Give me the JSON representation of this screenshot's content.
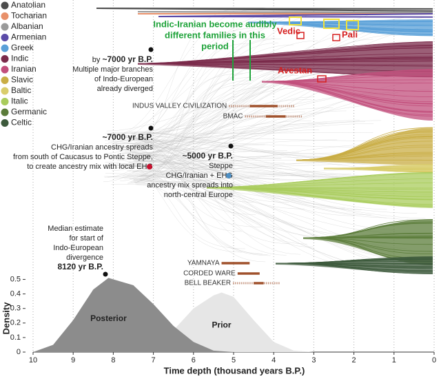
{
  "legend": [
    {
      "name": "Anatolian",
      "color": "#4d4d4d"
    },
    {
      "name": "Tocharian",
      "color": "#e8906a"
    },
    {
      "name": "Albanian",
      "color": "#9a9a9a"
    },
    {
      "name": "Armenian",
      "color": "#5b4ba8"
    },
    {
      "name": "Greek",
      "color": "#5aa0d8"
    },
    {
      "name": "Indic",
      "color": "#7a2a4a"
    },
    {
      "name": "Iranian",
      "color": "#c24f7c"
    },
    {
      "name": "Slavic",
      "color": "#c9ad45"
    },
    {
      "name": "Baltic",
      "color": "#d9cd6c"
    },
    {
      "name": "Italic",
      "color": "#a9cc5c"
    },
    {
      "name": "Germanic",
      "color": "#5b7c3a"
    },
    {
      "name": "Celtic",
      "color": "#3d5a3c"
    }
  ],
  "highlight": {
    "lines": [
      "Indic-Iranian become audibly",
      "different families in this",
      "period"
    ]
  },
  "languages": [
    "Vedic",
    "Pali",
    "Avestan"
  ],
  "annotations": [
    {
      "prefix": "by",
      "bold": "~7000 yr B.P.",
      "lines": [
        "Multiple major branches",
        "of Indo-European",
        "already diverged"
      ]
    },
    {
      "bold": "~7000 yr B.P.",
      "lines": [
        "CHG/Iranian ancestry spreads",
        "from south of Caucasus to Pontic Steppe,",
        "to create ancestry mix with local EHG"
      ]
    },
    {
      "bold": "~5000 yr B.P.",
      "lines": [
        "Steppe",
        "CHG/Iranian + EHG",
        "ancestry mix spreads into",
        "north-central Europe"
      ]
    },
    {
      "lines": [
        "Median estimate",
        "for start of",
        "Indo-European",
        "divergence"
      ],
      "bold": "8120 yr B.P."
    }
  ],
  "cultures": [
    {
      "name": "INDUS VALLEY CIVILIZATION",
      "start": 4.6,
      "end": 3.9,
      "dotted": true
    },
    {
      "name": "BMAC",
      "start": 4.2,
      "end": 3.7,
      "dotted": true
    },
    {
      "name": "YAMNAYA",
      "start": 5.3,
      "end": 4.6,
      "dotted": false
    },
    {
      "name": "CORDED WARE",
      "start": 4.9,
      "end": 4.35,
      "dotted": false
    },
    {
      "name": "BELL BEAKER",
      "start": 4.5,
      "end": 4.25,
      "dotted": true
    }
  ],
  "chart_data": {
    "type": "area",
    "x_label": "Time depth (thousand years B.P.)",
    "y_label": "Density",
    "xlim": [
      10,
      0
    ],
    "xticks": [
      10,
      9,
      8,
      7,
      6,
      5,
      4,
      3,
      2,
      1,
      0
    ],
    "ylim": [
      0,
      0.55
    ],
    "yticks": [
      0,
      0.1,
      0.2,
      0.3,
      0.4,
      0.5
    ],
    "grid": true,
    "series": [
      {
        "name": "Prior",
        "color": "#e6e6e6",
        "x": [
          7.5,
          7,
          6.5,
          6,
          5.5,
          5.3,
          5,
          4.5,
          4,
          3.5,
          3
        ],
        "values": [
          0,
          0.05,
          0.15,
          0.3,
          0.39,
          0.41,
          0.38,
          0.22,
          0.07,
          0.01,
          0
        ]
      },
      {
        "name": "Posterior",
        "color": "#8c8c8c",
        "x": [
          10,
          9.5,
          9,
          8.5,
          8.12,
          7.5,
          7,
          6.5,
          6,
          5.5,
          5
        ],
        "values": [
          0,
          0.05,
          0.22,
          0.43,
          0.51,
          0.46,
          0.33,
          0.18,
          0.07,
          0.01,
          0
        ]
      }
    ]
  }
}
